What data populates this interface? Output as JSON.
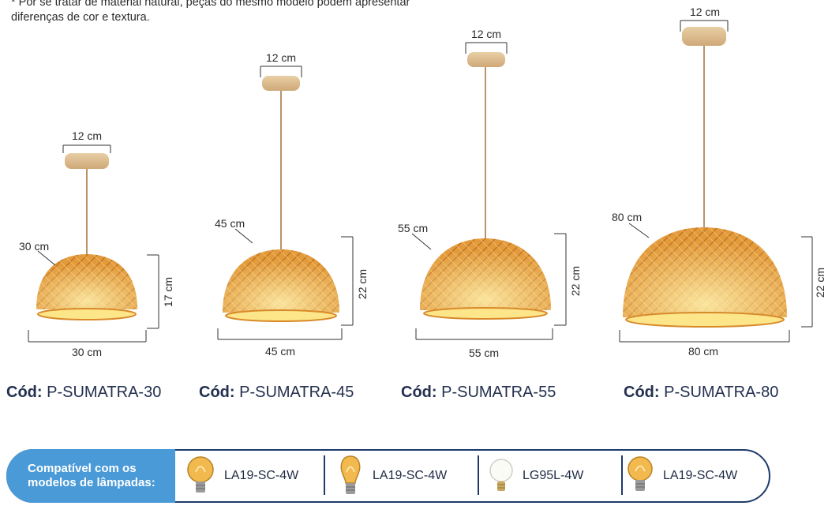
{
  "note": "* Por se tratar de material natural, peças do mesmo modelo podem apresentar diferenças de cor e textura.",
  "lamps": [
    {
      "canopy": "12 cm",
      "diameter_callout": "30 cm",
      "height": "17 cm",
      "width": "30 cm",
      "code_prefix": "Cód:",
      "code": "P-SUMATRA-30"
    },
    {
      "canopy": "12 cm",
      "diameter_callout": "45 cm",
      "height": "22 cm",
      "width": "45 cm",
      "code_prefix": "Cód:",
      "code": "P-SUMATRA-45"
    },
    {
      "canopy": "12 cm",
      "diameter_callout": "55 cm",
      "height": "22 cm",
      "width": "55 cm",
      "code_prefix": "Cód:",
      "code": "P-SUMATRA-55"
    },
    {
      "canopy": "12 cm",
      "diameter_callout": "80 cm",
      "height": "22 cm",
      "width": "80 cm",
      "code_prefix": "Cód:",
      "code": "P-SUMATRA-80"
    }
  ],
  "compat": {
    "label": "Compatível com os modelos de lâmpadas:",
    "bulbs": [
      {
        "icon": "globe-amber-bulb-icon",
        "model": "LA19-SC-4W"
      },
      {
        "icon": "pear-amber-bulb-icon",
        "model": "LA19-SC-4W"
      },
      {
        "icon": "globe-white-bulb-icon",
        "model": "LG95L-4W"
      },
      {
        "icon": "globe-amber-bulb-icon",
        "model": "LA19-SC-4W"
      }
    ]
  },
  "colors": {
    "accent": "#4a9ad8",
    "outline": "#1d3a6b",
    "rattan": "#e8a33c",
    "wood": "#d9b88a"
  }
}
